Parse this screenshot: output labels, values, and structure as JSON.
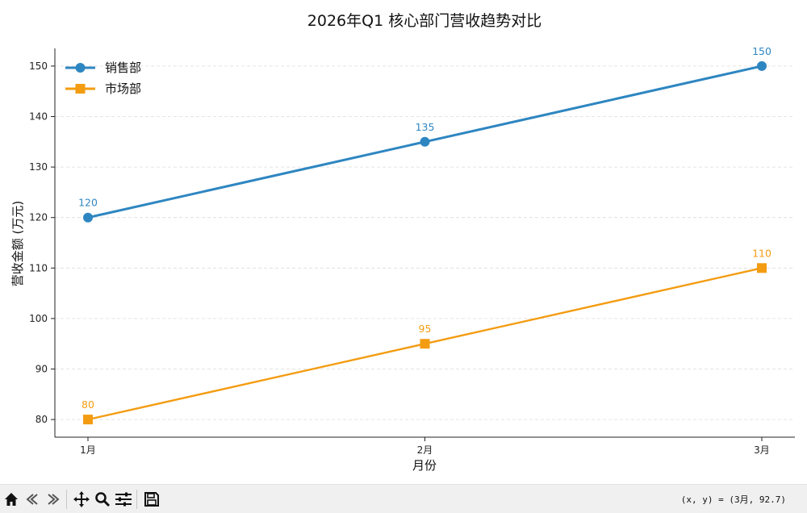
{
  "chart_data": {
    "type": "line",
    "title": "2026年Q1 核心部门营收趋势对比",
    "xlabel": "月份",
    "ylabel": "营收金额 (万元)",
    "categories": [
      "1月",
      "2月",
      "3月"
    ],
    "ylim": [
      76.5,
      153.5
    ],
    "yticks": [
      80,
      90,
      100,
      110,
      120,
      130,
      140,
      150
    ],
    "grid": "horizontal-dashed",
    "legend_position": "top-left",
    "series": [
      {
        "name": "销售部",
        "values": [
          120,
          135,
          150
        ],
        "color": "#2e86c1",
        "marker": "circle"
      },
      {
        "name": "市场部",
        "values": [
          80,
          95,
          110
        ],
        "color": "#f39c12",
        "marker": "square"
      }
    ]
  },
  "toolbar": {
    "buttons": [
      "home-icon",
      "back-icon",
      "forward-icon",
      "pan-icon",
      "zoom-icon",
      "configure-icon",
      "save-icon"
    ],
    "coord_readout": "(x, y) = (3月, 92.7)"
  }
}
